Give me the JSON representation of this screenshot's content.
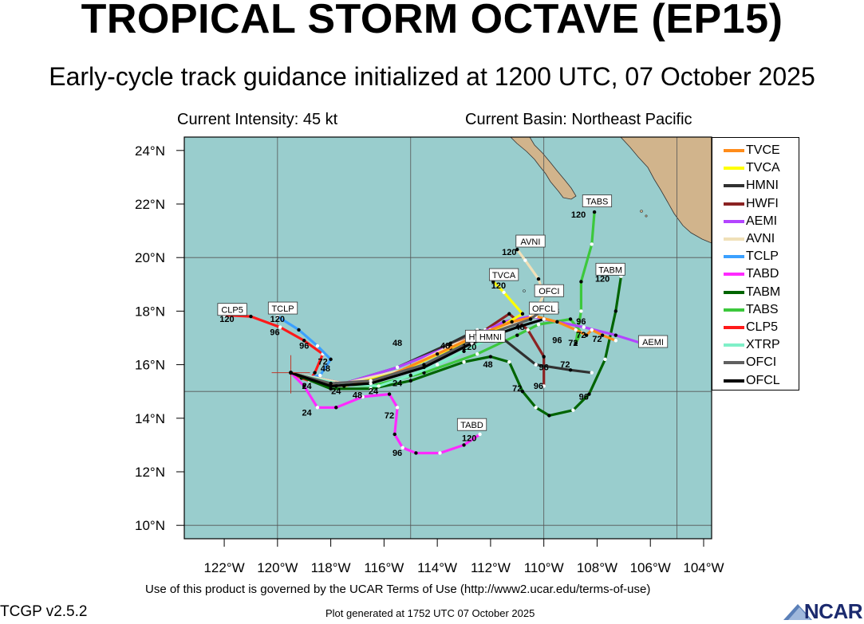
{
  "header": {
    "title": "TROPICAL STORM OCTAVE (EP15)",
    "subtitle": "Early-cycle track guidance initialized at 1200 UTC, 07 October 2025",
    "intensity": "Current Intensity: 45 kt",
    "basin": "Current Basin: Northeast Pacific"
  },
  "map": {
    "lon_range": [
      -123.5,
      -103.7
    ],
    "lat_range": [
      9.5,
      24.5
    ],
    "lon_ticks": [
      "122°W",
      "120°W",
      "118°W",
      "116°W",
      "114°W",
      "112°W",
      "110°W",
      "108°W",
      "106°W",
      "104°W"
    ],
    "lat_ticks": [
      "10°N",
      "12°N",
      "14°N",
      "16°N",
      "18°N",
      "20°N",
      "22°N",
      "24°N"
    ],
    "ocean_color": "#99cdcd",
    "land_color": "#d1b48c",
    "storm_position": [
      -119.5,
      15.7
    ]
  },
  "legend": {
    "items": [
      {
        "label": "TVCE",
        "color": "#ff8c1a"
      },
      {
        "label": "TVCA",
        "color": "#ffff00"
      },
      {
        "label": "HMNI",
        "color": "#303030"
      },
      {
        "label": "HWFI",
        "color": "#8b2323"
      },
      {
        "label": "AEMI",
        "color": "#b344ff"
      },
      {
        "label": "AVNI",
        "color": "#f0e0b8"
      },
      {
        "label": "TCLP",
        "color": "#3ba0ff"
      },
      {
        "label": "TABD",
        "color": "#ff2aff"
      },
      {
        "label": "TABM",
        "color": "#006400"
      },
      {
        "label": "TABS",
        "color": "#3cc83c"
      },
      {
        "label": "CLP5",
        "color": "#ff1a1a"
      },
      {
        "label": "XTRP",
        "color": "#7ff0c8"
      },
      {
        "label": "OFCI",
        "color": "#606060"
      },
      {
        "label": "OFCL",
        "color": "#000000"
      }
    ]
  },
  "tracks": [
    {
      "model": "CLP5",
      "color": "#ff1a1a",
      "label": "CLP5",
      "label_pos": [
        -121.7,
        18.05
      ],
      "points": [
        [
          -119.5,
          15.7
        ],
        [
          -119.1,
          15.5
        ],
        [
          -118.8,
          15.4
        ],
        [
          -118.6,
          15.7
        ],
        [
          -118.3,
          16.4
        ],
        [
          -119.0,
          16.9
        ],
        [
          -119.9,
          17.4
        ],
        [
          -121.0,
          17.8
        ],
        [
          -122.0,
          17.85
        ]
      ],
      "marks": [
        {
          "text": "24",
          "at": [
            -118.9,
            15.1
          ]
        },
        {
          "text": "72",
          "at": [
            -118.3,
            16.0
          ]
        },
        {
          "text": "96",
          "at": [
            -119.0,
            16.6
          ]
        },
        {
          "text": "120",
          "at": [
            -121.9,
            17.6
          ]
        }
      ]
    },
    {
      "model": "TCLP",
      "color": "#3ba0ff",
      "label": "TCLP",
      "label_pos": [
        -119.8,
        18.1
      ],
      "points": [
        [
          -119.5,
          15.7
        ],
        [
          -118.9,
          15.5
        ],
        [
          -118.4,
          15.6
        ],
        [
          -118.0,
          16.2
        ],
        [
          -118.5,
          16.7
        ],
        [
          -119.2,
          17.3
        ],
        [
          -120.0,
          17.8
        ]
      ],
      "marks": [
        {
          "text": "120",
          "at": [
            -120.0,
            17.6
          ]
        },
        {
          "text": "96",
          "at": [
            -120.1,
            17.1
          ]
        }
      ]
    },
    {
      "model": "TABD",
      "color": "#ff2aff",
      "label": "TABD",
      "label_pos": [
        -112.7,
        13.75
      ],
      "points": [
        [
          -119.5,
          15.7
        ],
        [
          -119.0,
          15.2
        ],
        [
          -118.5,
          14.4
        ],
        [
          -117.8,
          14.4
        ],
        [
          -116.8,
          14.8
        ],
        [
          -115.8,
          14.9
        ],
        [
          -115.5,
          14.4
        ],
        [
          -115.6,
          13.4
        ],
        [
          -115.3,
          12.9
        ],
        [
          -114.8,
          12.7
        ],
        [
          -113.9,
          12.7
        ],
        [
          -113.0,
          13.0
        ],
        [
          -112.4,
          13.4
        ]
      ],
      "marks": [
        {
          "text": "24",
          "at": [
            -118.9,
            14.1
          ]
        },
        {
          "text": "72",
          "at": [
            -115.8,
            14.0
          ]
        },
        {
          "text": "96",
          "at": [
            -115.5,
            12.6
          ]
        },
        {
          "text": "120",
          "at": [
            -112.8,
            13.15
          ]
        }
      ]
    },
    {
      "model": "TABM",
      "color": "#006400",
      "label": "TABM",
      "label_pos": [
        -107.5,
        19.55
      ],
      "points": [
        [
          -119.5,
          15.7
        ],
        [
          -118.0,
          15.1
        ],
        [
          -116.5,
          15.1
        ],
        [
          -115.0,
          15.4
        ],
        [
          -113.0,
          16.1
        ],
        [
          -112.0,
          16.3
        ],
        [
          -111.3,
          16.1
        ],
        [
          -110.8,
          15.0
        ],
        [
          -110.3,
          14.4
        ],
        [
          -109.8,
          14.1
        ],
        [
          -108.9,
          14.3
        ],
        [
          -108.3,
          14.9
        ],
        [
          -107.7,
          16.2
        ],
        [
          -107.3,
          18.0
        ],
        [
          -107.1,
          19.3
        ]
      ],
      "marks": [
        {
          "text": "96",
          "at": [
            -108.5,
            14.7
          ]
        },
        {
          "text": "120",
          "at": [
            -107.8,
            19.1
          ]
        }
      ]
    },
    {
      "model": "TABS",
      "color": "#3cc83c",
      "label": "TABS",
      "label_pos": [
        -108.0,
        22.1
      ],
      "points": [
        [
          -119.5,
          15.7
        ],
        [
          -118.0,
          15.3
        ],
        [
          -116.5,
          15.2
        ],
        [
          -114.5,
          15.7
        ],
        [
          -112.5,
          16.4
        ],
        [
          -111.0,
          17.1
        ],
        [
          -110.2,
          17.5
        ],
        [
          -109.0,
          17.7
        ],
        [
          -108.6,
          17.2
        ],
        [
          -108.8,
          16.8
        ],
        [
          -108.6,
          18.0
        ],
        [
          -108.6,
          19.1
        ],
        [
          -108.2,
          20.5
        ],
        [
          -108.1,
          21.7
        ]
      ],
      "marks": [
        {
          "text": "72",
          "at": [
            -108.6,
            17.0
          ]
        },
        {
          "text": "120",
          "at": [
            -108.7,
            21.5
          ]
        }
      ]
    },
    {
      "model": "HWFI",
      "color": "#8b2323",
      "label": "HWFI",
      "label_pos": [
        -112.4,
        17.05
      ],
      "points": [
        [
          -119.5,
          15.7
        ],
        [
          -117.5,
          15.2
        ],
        [
          -115.5,
          15.7
        ],
        [
          -113.5,
          16.7
        ],
        [
          -112.2,
          17.3
        ],
        [
          -111.3,
          17.9
        ],
        [
          -110.6,
          17.3
        ],
        [
          -110.0,
          16.3
        ],
        [
          -110.0,
          15.2
        ]
      ],
      "marks": [
        {
          "text": "72",
          "at": [
            -111.0,
            15.0
          ]
        },
        {
          "text": "96",
          "at": [
            -110.2,
            15.1
          ]
        }
      ]
    },
    {
      "model": "HMNI",
      "color": "#303030",
      "label": "HMNI",
      "label_pos": [
        -112.0,
        17.05
      ],
      "points": [
        [
          -119.5,
          15.7
        ],
        [
          -117.5,
          15.3
        ],
        [
          -115.5,
          15.9
        ],
        [
          -113.5,
          16.8
        ],
        [
          -112.5,
          17.3
        ],
        [
          -111.7,
          17.1
        ],
        [
          -110.3,
          16.0
        ],
        [
          -109.0,
          15.8
        ],
        [
          -108.2,
          15.7
        ]
      ],
      "marks": [
        {
          "text": "96",
          "at": [
            -110.0,
            15.8
          ]
        },
        {
          "text": "72",
          "at": [
            -109.2,
            15.9
          ]
        }
      ]
    },
    {
      "model": "AEMI",
      "color": "#b344ff",
      "label": "AEMI",
      "label_pos": [
        -105.9,
        16.85
      ],
      "points": [
        [
          -119.5,
          15.7
        ],
        [
          -117.5,
          15.3
        ],
        [
          -115.5,
          15.9
        ],
        [
          -113.5,
          16.7
        ],
        [
          -112.5,
          17.1
        ],
        [
          -111.5,
          17.6
        ],
        [
          -110.5,
          17.8
        ],
        [
          -109.5,
          17.6
        ],
        [
          -108.5,
          17.4
        ],
        [
          -107.3,
          17.1
        ],
        [
          -106.0,
          16.7
        ]
      ],
      "marks": [
        {
          "text": "96",
          "at": [
            -108.6,
            17.5
          ]
        }
      ]
    },
    {
      "model": "AVNI",
      "color": "#f0e0b8",
      "label": "AVNI",
      "label_pos": [
        -110.5,
        20.6
      ],
      "points": [
        [
          -119.5,
          15.7
        ],
        [
          -117.5,
          15.3
        ],
        [
          -115.3,
          15.8
        ],
        [
          -113.5,
          16.7
        ],
        [
          -112.0,
          17.3
        ],
        [
          -110.5,
          17.7
        ],
        [
          -110.0,
          18.6
        ],
        [
          -110.2,
          19.2
        ],
        [
          -110.7,
          19.9
        ],
        [
          -111.0,
          20.3
        ]
      ],
      "marks": [
        {
          "text": "120",
          "at": [
            -111.3,
            20.1
          ]
        }
      ]
    },
    {
      "model": "TVCA",
      "color": "#ffff00",
      "label": "TVCA",
      "label_pos": [
        -111.5,
        19.35
      ],
      "points": [
        [
          -119.5,
          15.7
        ],
        [
          -117.5,
          15.2
        ],
        [
          -115.5,
          15.7
        ],
        [
          -113.5,
          16.6
        ],
        [
          -112.0,
          17.2
        ],
        [
          -110.8,
          17.9
        ],
        [
          -111.5,
          18.7
        ],
        [
          -111.9,
          19.1
        ]
      ],
      "marks": [
        {
          "text": "120",
          "at": [
            -111.7,
            18.85
          ]
        }
      ]
    },
    {
      "model": "TVCE",
      "color": "#ff8c1a",
      "label": "",
      "label_pos": [
        0,
        0
      ],
      "points": [
        [
          -119.5,
          15.7
        ],
        [
          -117.8,
          15.2
        ],
        [
          -116.0,
          15.5
        ],
        [
          -114.0,
          16.4
        ],
        [
          -112.5,
          17.1
        ],
        [
          -111.2,
          17.6
        ],
        [
          -110.3,
          17.8
        ],
        [
          -109.5,
          17.6
        ],
        [
          -108.8,
          17.3
        ],
        [
          -108.4,
          17.1
        ],
        [
          -108.2,
          17.3
        ],
        [
          -107.8,
          17.1
        ],
        [
          -107.3,
          16.9
        ]
      ],
      "marks": [
        {
          "text": "48",
          "at": [
            -109.6,
            17.9
          ]
        },
        {
          "text": "72",
          "at": [
            -108.0,
            16.85
          ]
        }
      ]
    },
    {
      "model": "XTRP",
      "color": "#7ff0c8",
      "label": "",
      "label_pos": [
        0,
        0
      ],
      "points": [
        [
          -119.5,
          15.7
        ],
        [
          -117.8,
          15.3
        ],
        [
          -116.2,
          15.2
        ],
        [
          -115.0,
          15.6
        ],
        [
          -114.0,
          16.0
        ],
        [
          -113.0,
          16.5
        ],
        [
          -112.0,
          17.0
        ]
      ],
      "marks": [
        {
          "text": "48",
          "at": [
            -113.7,
            16.6
          ]
        },
        {
          "text": "120",
          "at": [
            -112.8,
            16.55
          ]
        }
      ]
    },
    {
      "model": "OFCI",
      "color": "#606060",
      "label": "OFCI",
      "label_pos": [
        -109.8,
        18.75
      ],
      "points": [
        [
          -119.5,
          15.7
        ],
        [
          -118.0,
          15.3
        ],
        [
          -116.5,
          15.4
        ],
        [
          -114.5,
          16.0
        ],
        [
          -112.5,
          17.0
        ],
        [
          -110.5,
          17.7
        ],
        [
          -109.7,
          18.3
        ]
      ],
      "marks": []
    },
    {
      "model": "OFCL",
      "color": "#000000",
      "label": "OFCL",
      "label_pos": [
        -110.0,
        18.1
      ],
      "points": [
        [
          -119.5,
          15.7
        ],
        [
          -118.0,
          15.2
        ],
        [
          -116.5,
          15.3
        ],
        [
          -114.5,
          15.9
        ],
        [
          -112.7,
          16.8
        ],
        [
          -111.0,
          17.4
        ],
        [
          -110.0,
          17.7
        ]
      ],
      "marks": [
        {
          "text": "48",
          "at": [
            -110.9,
            17.3
          ]
        },
        {
          "text": "96",
          "at": [
            -109.5,
            16.8
          ]
        },
        {
          "text": "72",
          "at": [
            -108.9,
            16.7
          ]
        }
      ]
    }
  ],
  "extra_marks": [
    {
      "text": "48",
      "at": [
        -118.2,
        15.75
      ]
    },
    {
      "text": "24",
      "at": [
        -117.8,
        14.9
      ]
    },
    {
      "text": "24",
      "at": [
        -116.4,
        14.9
      ]
    },
    {
      "text": "48",
      "at": [
        -117.0,
        14.75
      ]
    },
    {
      "text": "24",
      "at": [
        -115.5,
        15.2
      ]
    },
    {
      "text": "48",
      "at": [
        -115.5,
        16.7
      ]
    },
    {
      "text": "48",
      "at": [
        -112.0,
        16.9
      ]
    },
    {
      "text": "48",
      "at": [
        -112.1,
        15.9
      ]
    }
  ],
  "footer": {
    "terms": "Use of this product is governed by the UCAR Terms of Use (http://www2.ucar.edu/terms-of-use)",
    "version": "TCGP v2.5.2",
    "generated": "Plot generated at 1752 UTC   07 October 2025",
    "logo_text": "NCAR"
  }
}
